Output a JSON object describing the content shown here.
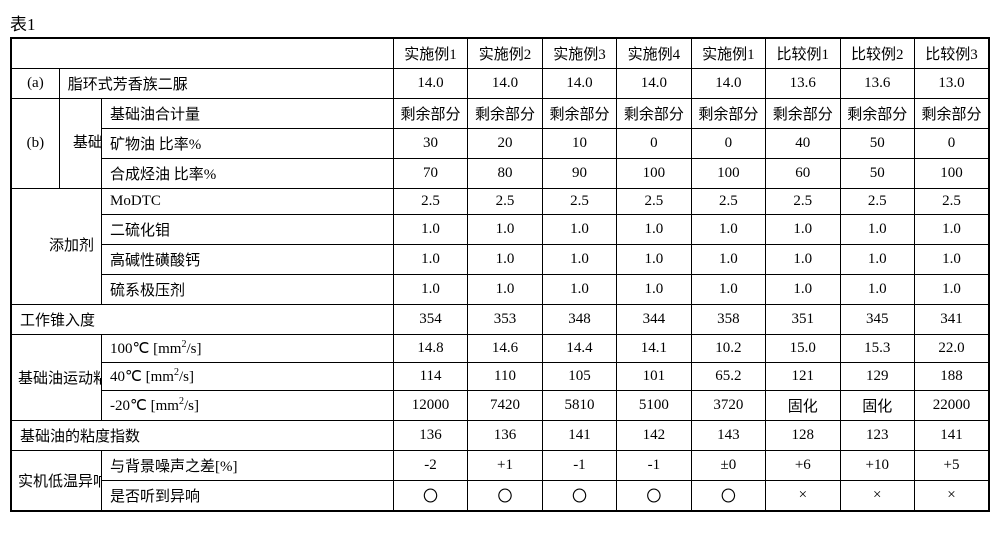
{
  "title": "表1",
  "columns": [
    "实施例1",
    "实施例2",
    "实施例3",
    "实施例4",
    "实施例1",
    "比较例1",
    "比较例2",
    "比较例3"
  ],
  "group_labels": {
    "a": "(a)",
    "b": "(b)",
    "base_oil": "基础油",
    "additive": "添加剂",
    "viscosity": "基础油运动粘度",
    "sound": "实机低温异响声压测定"
  },
  "row_labels": {
    "diurea": "脂环式芳香族二脲",
    "base_total": "基础油合计量",
    "mineral_ratio": "矿物油 比率%",
    "synthetic_ratio": "合成烃油 比率%",
    "modtc": "MoDTC",
    "mos2": "二硫化钼",
    "casulf": "高碱性磺酸钙",
    "s_ep": "硫系极压剂",
    "penetration": "工作锥入度",
    "v100": "100℃ [mm²/s]",
    "v40": "40℃ [mm²/s]",
    "vneg20": "-20℃ [mm²/s]",
    "vi": "基础油的粘度指数",
    "noise_diff": "与背景噪声之差[%]",
    "noise_heard": "是否听到异响"
  },
  "data": {
    "diurea": [
      "14.0",
      "14.0",
      "14.0",
      "14.0",
      "14.0",
      "13.6",
      "13.6",
      "13.0"
    ],
    "base_total": [
      "剩余部分",
      "剩余部分",
      "剩余部分",
      "剩余部分",
      "剩余部分",
      "剩余部分",
      "剩余部分",
      "剩余部分"
    ],
    "mineral_ratio": [
      "30",
      "20",
      "10",
      "0",
      "0",
      "40",
      "50",
      "0"
    ],
    "synthetic_ratio": [
      "70",
      "80",
      "90",
      "100",
      "100",
      "60",
      "50",
      "100"
    ],
    "modtc": [
      "2.5",
      "2.5",
      "2.5",
      "2.5",
      "2.5",
      "2.5",
      "2.5",
      "2.5"
    ],
    "mos2": [
      "1.0",
      "1.0",
      "1.0",
      "1.0",
      "1.0",
      "1.0",
      "1.0",
      "1.0"
    ],
    "casulf": [
      "1.0",
      "1.0",
      "1.0",
      "1.0",
      "1.0",
      "1.0",
      "1.0",
      "1.0"
    ],
    "s_ep": [
      "1.0",
      "1.0",
      "1.0",
      "1.0",
      "1.0",
      "1.0",
      "1.0",
      "1.0"
    ],
    "penetration": [
      "354",
      "353",
      "348",
      "344",
      "358",
      "351",
      "345",
      "341"
    ],
    "v100": [
      "14.8",
      "14.6",
      "14.4",
      "14.1",
      "10.2",
      "15.0",
      "15.3",
      "22.0"
    ],
    "v40": [
      "114",
      "110",
      "105",
      "101",
      "65.2",
      "121",
      "129",
      "188"
    ],
    "vneg20": [
      "12000",
      "7420",
      "5810",
      "5100",
      "3720",
      "固化",
      "固化",
      "22000"
    ],
    "vi": [
      "136",
      "136",
      "141",
      "142",
      "143",
      "128",
      "123",
      "141"
    ],
    "noise_diff": [
      "-2",
      "+1",
      "-1",
      "-1",
      "±0",
      "+6",
      "+10",
      "+5"
    ],
    "noise_heard": [
      "〇",
      "〇",
      "〇",
      "〇",
      "〇",
      "×",
      "×",
      "×"
    ]
  }
}
